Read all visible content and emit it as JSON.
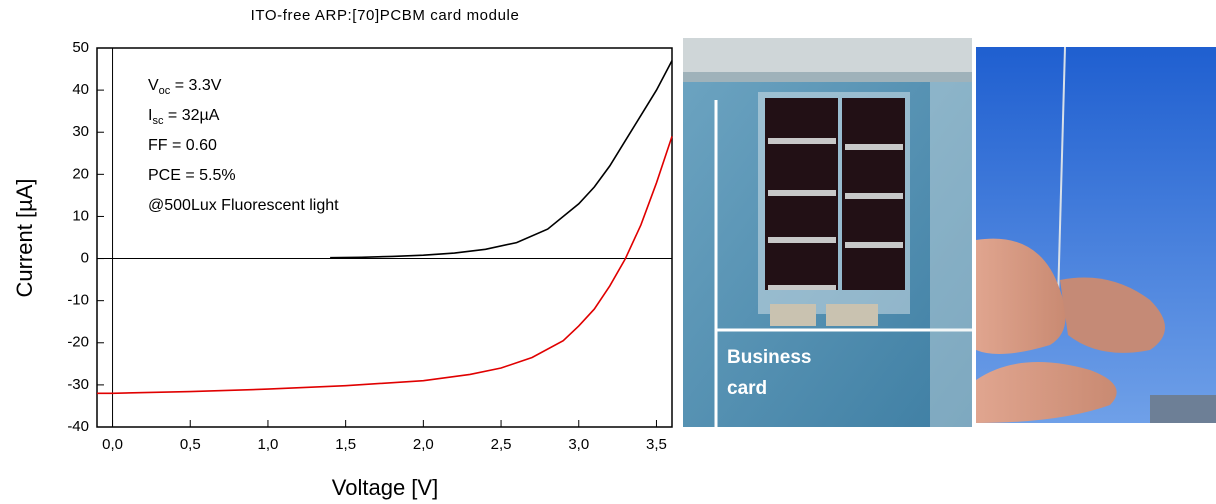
{
  "chart_data": {
    "type": "line",
    "title": "ITO-free ARP:[70]PCBM card module",
    "x_label": "Voltage [V]",
    "y_label": "Current [µA]",
    "xlim": [
      -0.1,
      3.6
    ],
    "ylim": [
      -40,
      50
    ],
    "xticks": [
      {
        "value": 0,
        "label": "0,0"
      },
      {
        "value": 0.5,
        "label": "0,5"
      },
      {
        "value": 1,
        "label": "1,0"
      },
      {
        "value": 1.5,
        "label": "1,5"
      },
      {
        "value": 2,
        "label": "2,0"
      },
      {
        "value": 2.5,
        "label": "2,5"
      },
      {
        "value": 3,
        "label": "3,0"
      },
      {
        "value": 3.5,
        "label": "3,5"
      }
    ],
    "yticks": [
      -40,
      -30,
      -20,
      -10,
      0,
      10,
      20,
      30,
      40,
      50
    ],
    "annotations": [
      {
        "text": "V",
        "sub": "oc",
        "tail": " = 3.3V"
      },
      {
        "text": "I",
        "sub": "sc",
        "tail": " =  32µA"
      },
      {
        "text": "FF = 0.60"
      },
      {
        "text": "PCE = 5.5%"
      },
      {
        "text": "@500Lux Fluorescent light"
      }
    ],
    "series": [
      {
        "color": "#000000",
        "x": [
          1.4,
          1.6,
          1.8,
          2.0,
          2.2,
          2.4,
          2.6,
          2.8,
          3.0,
          3.1,
          3.2,
          3.3,
          3.4,
          3.5,
          3.6
        ],
        "values": [
          0.2,
          0.3,
          0.5,
          0.8,
          1.3,
          2.2,
          3.8,
          7,
          13,
          17,
          22,
          28,
          34,
          40,
          47
        ]
      },
      {
        "color": "#e00000",
        "x": [
          -0.1,
          0,
          0.5,
          1.0,
          1.5,
          2.0,
          2.3,
          2.5,
          2.7,
          2.9,
          3.0,
          3.1,
          3.2,
          3.3,
          3.4,
          3.5,
          3.6
        ],
        "values": [
          -32,
          -32,
          -31.6,
          -31,
          -30.2,
          -29,
          -27.5,
          -26,
          -23.5,
          -19.5,
          -16,
          -12,
          -6.5,
          0,
          8,
          18,
          29
        ]
      }
    ]
  },
  "photo_text": [
    "Business",
    "card"
  ]
}
